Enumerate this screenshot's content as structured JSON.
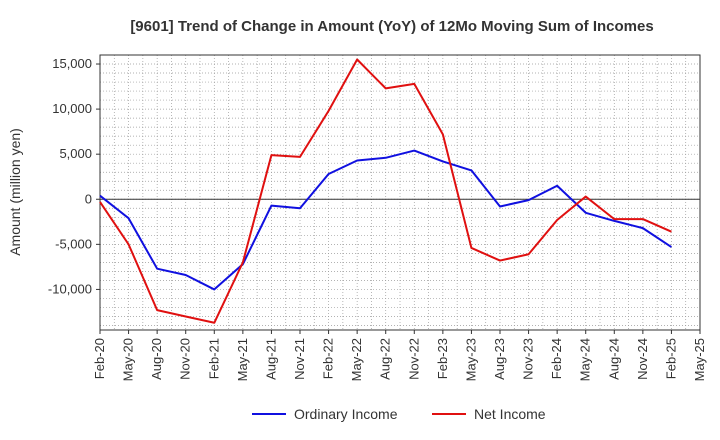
{
  "chart_data": {
    "type": "line",
    "title": "[9601]  Trend of Change in Amount (YoY) of 12Mo Moving Sum of Incomes",
    "xlabel": "",
    "ylabel": "Amount (million yen)",
    "ylim": [
      -14500,
      16000
    ],
    "yticks": [
      -10000,
      -5000,
      0,
      5000,
      10000,
      15000
    ],
    "ytick_labels": [
      "-10,000",
      "-5,000",
      "0",
      "5,000",
      "10,000",
      "15,000"
    ],
    "categories": [
      "Feb-20",
      "May-20",
      "Aug-20",
      "Nov-20",
      "Feb-21",
      "May-21",
      "Aug-21",
      "Nov-21",
      "Feb-22",
      "May-22",
      "Aug-22",
      "Nov-22",
      "Feb-23",
      "May-23",
      "Aug-23",
      "Nov-23",
      "Feb-24",
      "May-24",
      "Aug-24",
      "Nov-24",
      "Feb-25",
      "May-25"
    ],
    "grid": true,
    "legend_position": "bottom",
    "series": [
      {
        "name": "Ordinary Income",
        "color": "#1010e0",
        "values": [
          400,
          -2100,
          -7700,
          -8400,
          -10000,
          -7200,
          -700,
          -1000,
          2800,
          4300,
          4600,
          5400,
          4200,
          3200,
          -800,
          -100,
          1500,
          -1500,
          -2400,
          -3200,
          -5300,
          null
        ]
      },
      {
        "name": "Net Income",
        "color": "#e01010",
        "values": [
          -300,
          -5000,
          -12300,
          -13000,
          -13700,
          -7000,
          4900,
          4700,
          9800,
          15500,
          12300,
          12800,
          7200,
          -5400,
          -6800,
          -6100,
          -2300,
          300,
          -2200,
          -2200,
          -3600,
          null
        ]
      }
    ]
  }
}
